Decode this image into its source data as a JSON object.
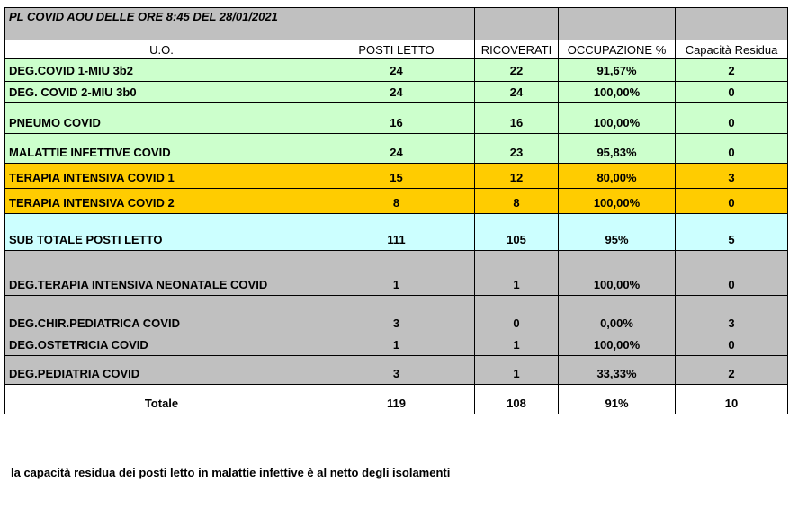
{
  "title": "PL COVID AOU DELLE ORE 8:45 DEL 28/01/2021",
  "headers": [
    "U.O.",
    "POSTI LETTO",
    "RICOVERATI",
    "OCCUPAZIONE %",
    "Capacità Residua"
  ],
  "rows": [
    {
      "name": "DEG.COVID 1-MIU 3b2",
      "posti": "24",
      "ricoverati": "22",
      "occupazione": "91,67%",
      "residua": "2",
      "group": "green"
    },
    {
      "name": "DEG. COVID 2-MIU 3b0",
      "posti": "24",
      "ricoverati": "24",
      "occupazione": "100,00%",
      "residua": "0",
      "group": "green"
    },
    {
      "name": "PNEUMO COVID",
      "posti": "16",
      "ricoverati": "16",
      "occupazione": "100,00%",
      "residua": "0",
      "group": "green"
    },
    {
      "name": "MALATTIE INFETTIVE COVID",
      "posti": "24",
      "ricoverati": "23",
      "occupazione": "95,83%",
      "residua": "0",
      "group": "green"
    },
    {
      "name": "TERAPIA INTENSIVA COVID 1",
      "posti": "15",
      "ricoverati": "12",
      "occupazione": "80,00%",
      "residua": "3",
      "group": "orange"
    },
    {
      "name": "TERAPIA INTENSIVA COVID 2",
      "posti": "8",
      "ricoverati": "8",
      "occupazione": "100,00%",
      "residua": "0",
      "group": "orange"
    },
    {
      "name": "SUB TOTALE POSTI LETTO",
      "posti": "111",
      "ricoverati": "105",
      "occupazione": "95%",
      "residua": "5",
      "group": "cyan"
    },
    {
      "name": "DEG.TERAPIA INTENSIVA NEONATALE COVID",
      "posti": "1",
      "ricoverati": "1",
      "occupazione": "100,00%",
      "residua": "0",
      "group": "gray"
    },
    {
      "name": "DEG.CHIR.PEDIATRICA COVID",
      "posti": "3",
      "ricoverati": "0",
      "occupazione": "0,00%",
      "residua": "3",
      "group": "gray"
    },
    {
      "name": "DEG.OSTETRICIA COVID",
      "posti": "1",
      "ricoverati": "1",
      "occupazione": "100,00%",
      "residua": "0",
      "group": "gray"
    },
    {
      "name": "DEG.PEDIATRIA COVID",
      "posti": "3",
      "ricoverati": "1",
      "occupazione": "33,33%",
      "residua": "2",
      "group": "gray"
    }
  ],
  "total": {
    "name": "Totale",
    "posti": "119",
    "ricoverati": "108",
    "occupazione": "91%",
    "residua": "10"
  },
  "colors": {
    "green": "#ccffcc",
    "orange": "#ffcc00",
    "cyan": "#ccffff",
    "gray": "#c0c0c0"
  },
  "note": "la capacità residua dei posti letto in malattie infettive è al netto degli isolamenti"
}
